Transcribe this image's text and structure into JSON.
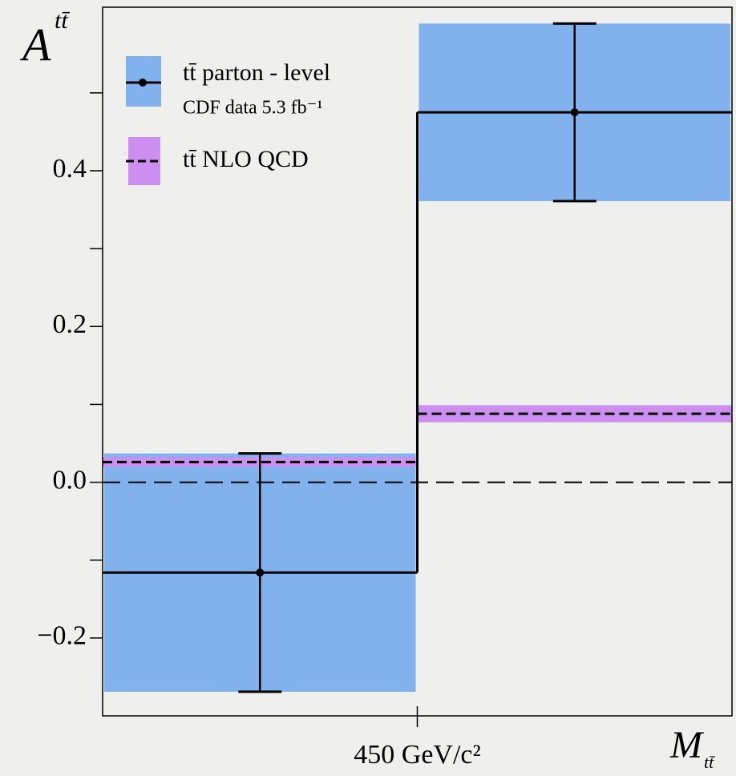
{
  "chart_data": {
    "type": "step",
    "ylabel": "A",
    "ylabel_sup": "tt̄",
    "xlabel": "M",
    "xlabel_sub": "tt̄",
    "categories": [
      null,
      null
    ],
    "bin_edge_label": "450 GeV/c²",
    "ylim": [
      -0.3,
      0.61
    ],
    "yticks": [
      {
        "value": -0.2,
        "label": "−0.2"
      },
      {
        "value": 0,
        "label": "0.0"
      },
      0.2,
      0.4
    ],
    "yminor": [
      -0.1,
      0.1,
      0.3,
      0.5
    ],
    "hline": 0,
    "series": [
      {
        "name": "tt̄ parton - level",
        "note": "CDF data 5.3 fb⁻¹",
        "color": "#82b2ee",
        "line": "solid",
        "values": [
          -0.116,
          0.475
        ],
        "errors": [
          0.153,
          0.114
        ]
      },
      {
        "name": "tt̄ NLO QCD",
        "color": "#cc8ff0",
        "line": "dashed",
        "values": [
          0.026,
          0.088
        ],
        "errors": [
          0.006,
          0.011
        ]
      }
    ]
  }
}
